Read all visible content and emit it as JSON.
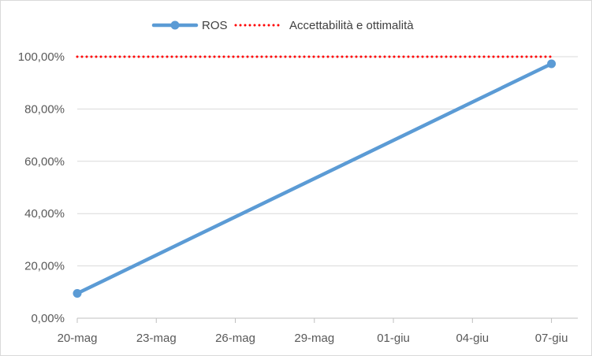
{
  "chart_data": {
    "type": "line",
    "title": "",
    "xlabel": "",
    "ylabel": "",
    "x_ticks": [
      "20-mag",
      "23-mag",
      "26-mag",
      "29-mag",
      "01-giu",
      "04-giu",
      "07-giu"
    ],
    "y_ticks": [
      "0,00%",
      "20,00%",
      "40,00%",
      "60,00%",
      "80,00%",
      "100,00%"
    ],
    "ylim": [
      0,
      100
    ],
    "xlim": [
      "2024-05-20",
      "2024-06-08"
    ],
    "grid": "horizontal",
    "legend_position": "top",
    "series": [
      {
        "name": "ROS",
        "style": "solid line with markers",
        "color": "#5b9bd5",
        "points": [
          {
            "x": "2024-05-20",
            "y": 9.5
          },
          {
            "x": "2024-06-07",
            "y": 97.3
          }
        ]
      },
      {
        "name": "Accettabilità e ottimalità",
        "style": "dotted",
        "color": "#ff0000",
        "points": [
          {
            "x": "2024-05-20",
            "y": 100
          },
          {
            "x": "2024-06-07",
            "y": 100
          }
        ]
      }
    ]
  }
}
